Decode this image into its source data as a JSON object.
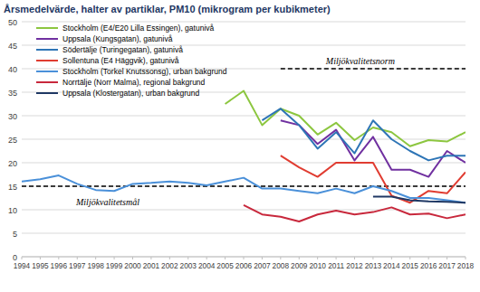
{
  "chart_data": {
    "type": "line",
    "title": "Årsmedelvärde, halter av partiklar, PM10 (mikrogram per kubikmeter)",
    "x": [
      1994,
      1995,
      1996,
      1997,
      1998,
      1999,
      2000,
      2001,
      2002,
      2003,
      2004,
      2005,
      2006,
      2007,
      2008,
      2009,
      2010,
      2011,
      2012,
      2013,
      2014,
      2015,
      2016,
      2017,
      2018
    ],
    "xlim": [
      1994,
      2018
    ],
    "xticks": [
      1994,
      1995,
      1996,
      1997,
      1998,
      1999,
      2000,
      2001,
      2002,
      2003,
      2004,
      2005,
      2006,
      2007,
      2008,
      2009,
      2010,
      2011,
      2012,
      2013,
      2014,
      2015,
      2016,
      2017,
      2018
    ],
    "ylim": [
      0,
      50
    ],
    "yticks": [
      0,
      5,
      10,
      15,
      20,
      25,
      30,
      35,
      40,
      45,
      50
    ],
    "grid": true,
    "legend": "upper left",
    "series": [
      {
        "name": "Stockholm (E4/E20 Lilla Essingen), gatunivå",
        "color": "#8cc63f",
        "values": [
          null,
          null,
          null,
          null,
          null,
          null,
          null,
          null,
          null,
          null,
          null,
          32.5,
          35.3,
          28,
          31.5,
          30,
          26,
          28.5,
          24.8,
          27.5,
          26.5,
          23.5,
          24.8,
          24.5,
          26.5
        ]
      },
      {
        "name": "Uppsala (Kungsgatan), gatunivå",
        "color": "#7030a0",
        "values": [
          null,
          null,
          null,
          null,
          null,
          null,
          null,
          null,
          null,
          null,
          null,
          null,
          null,
          null,
          29,
          28,
          24,
          27,
          20.5,
          25.5,
          18.5,
          18.5,
          17,
          22.5,
          20
        ]
      },
      {
        "name": "Södertälje (Turingegatan), gatunivå",
        "color": "#2e75b6",
        "values": [
          null,
          null,
          null,
          null,
          null,
          null,
          null,
          null,
          null,
          null,
          null,
          null,
          null,
          29,
          31.5,
          28,
          23,
          26.5,
          22,
          29,
          25,
          22.5,
          20.5,
          21.5,
          21.5
        ]
      },
      {
        "name": "Sollentuna (E4 Häggvik), gatunivå",
        "color": "#e03c31",
        "values": [
          null,
          null,
          null,
          null,
          null,
          null,
          null,
          null,
          null,
          null,
          null,
          null,
          null,
          null,
          21.5,
          19,
          17,
          20,
          20,
          20,
          13,
          11.5,
          14,
          13.5,
          18
        ]
      },
      {
        "name": "Stockholm (Torkel Knutssonsg), urban bakgrund",
        "color": "#4a90d9",
        "values": [
          16,
          16.5,
          17.3,
          15.5,
          14.2,
          14,
          15.5,
          15.7,
          16,
          15.7,
          15.2,
          16,
          16.8,
          14.5,
          14.5,
          14,
          13.5,
          14.5,
          13.5,
          15,
          14,
          12.5,
          12.5,
          12,
          11.5
        ]
      },
      {
        "name": "Norrtälje (Norr Malma), regional bakgrund",
        "color": "#c8283c",
        "values": [
          null,
          null,
          null,
          null,
          null,
          null,
          null,
          null,
          null,
          null,
          null,
          null,
          11,
          9,
          8.5,
          7.5,
          9,
          9.8,
          9,
          9.5,
          10.5,
          9,
          9.2,
          8.2,
          9
        ]
      },
      {
        "name": "Uppsala (Klostergatan), urban bakgrund",
        "color": "#1f3864",
        "values": [
          null,
          null,
          null,
          null,
          null,
          null,
          null,
          null,
          null,
          null,
          null,
          null,
          null,
          null,
          null,
          null,
          null,
          null,
          null,
          12.8,
          12.8,
          12,
          11.8,
          11.7,
          11.5
        ]
      }
    ],
    "annotations": [
      {
        "label": "Miljökvalitetsnorm",
        "y": 40,
        "x": [
          2008,
          2018
        ],
        "line_style": "dashed"
      },
      {
        "label": "Miljökvalitetsmål",
        "y": 15,
        "x": [
          1994,
          2018
        ],
        "line_style": "dashed"
      }
    ]
  }
}
